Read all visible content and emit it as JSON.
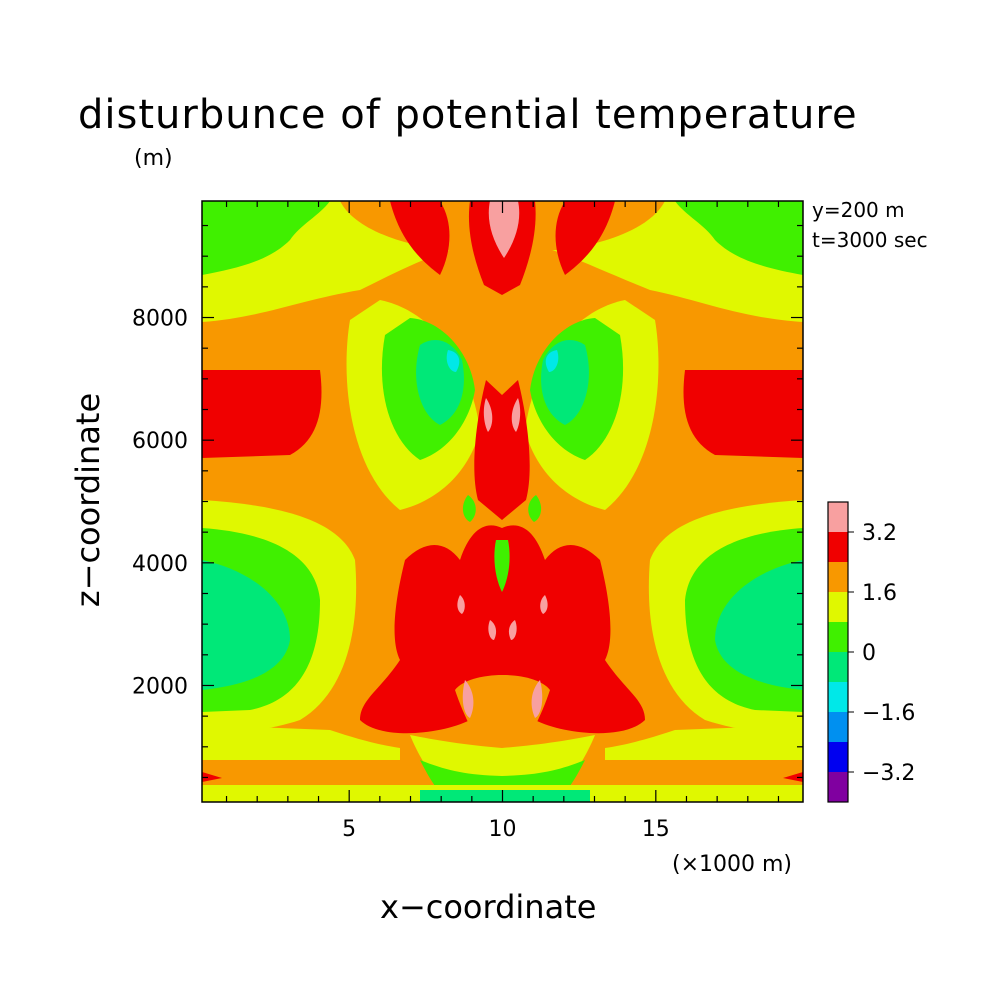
{
  "chart_data": {
    "type": "heatmap",
    "title": "disturbunce of potential temperature",
    "ylabel_unit": "(m)",
    "xlabel": "x−coordinate",
    "ylabel": "z−coordinate",
    "xunit": "(×1000 m)",
    "annotations": [
      "y=200 m",
      "t=3000 sec"
    ],
    "xlim": [
      0.2,
      19.8
    ],
    "ylim": [
      100,
      9900
    ],
    "x_ticks": [
      5,
      10,
      15
    ],
    "y_ticks": [
      2000,
      4000,
      6000,
      8000
    ],
    "x_tick_labels": [
      "5",
      "10",
      "15"
    ],
    "y_tick_labels": [
      "2000",
      "4000",
      "6000",
      "8000"
    ],
    "levels": [
      -4.0,
      -3.2,
      -2.4,
      -1.6,
      -0.8,
      0,
      0.8,
      1.6,
      2.4,
      3.2,
      4.0
    ],
    "colorbar_labels": [
      "3.2",
      "1.6",
      "0",
      "−1.6",
      "−3.2"
    ],
    "colorbar_colors": [
      "#8000a0",
      "#0000f0",
      "#0090f0",
      "#00e8e8",
      "#00e878",
      "#40f000",
      "#e0f800",
      "#f89800",
      "#f00000",
      "#f8a0a0"
    ],
    "legend_position": "right",
    "grid": false,
    "series": [
      {
        "level_range": [
          0.8,
          1.6
        ],
        "color": "#e0f800"
      },
      {
        "level_range": [
          1.6,
          2.4
        ],
        "color": "#f89800"
      },
      {
        "level_range": [
          2.4,
          3.2
        ],
        "color": "#f00000"
      },
      {
        "level_range": [
          3.2,
          4.0
        ],
        "color": "#f8a0a0"
      },
      {
        "level_range": [
          0,
          0.8
        ],
        "color": "#40f000"
      },
      {
        "level_range": [
          -0.8,
          0
        ],
        "color": "#00e878"
      },
      {
        "level_range": [
          -1.6,
          -0.8
        ],
        "color": "#00e8e8"
      }
    ]
  }
}
